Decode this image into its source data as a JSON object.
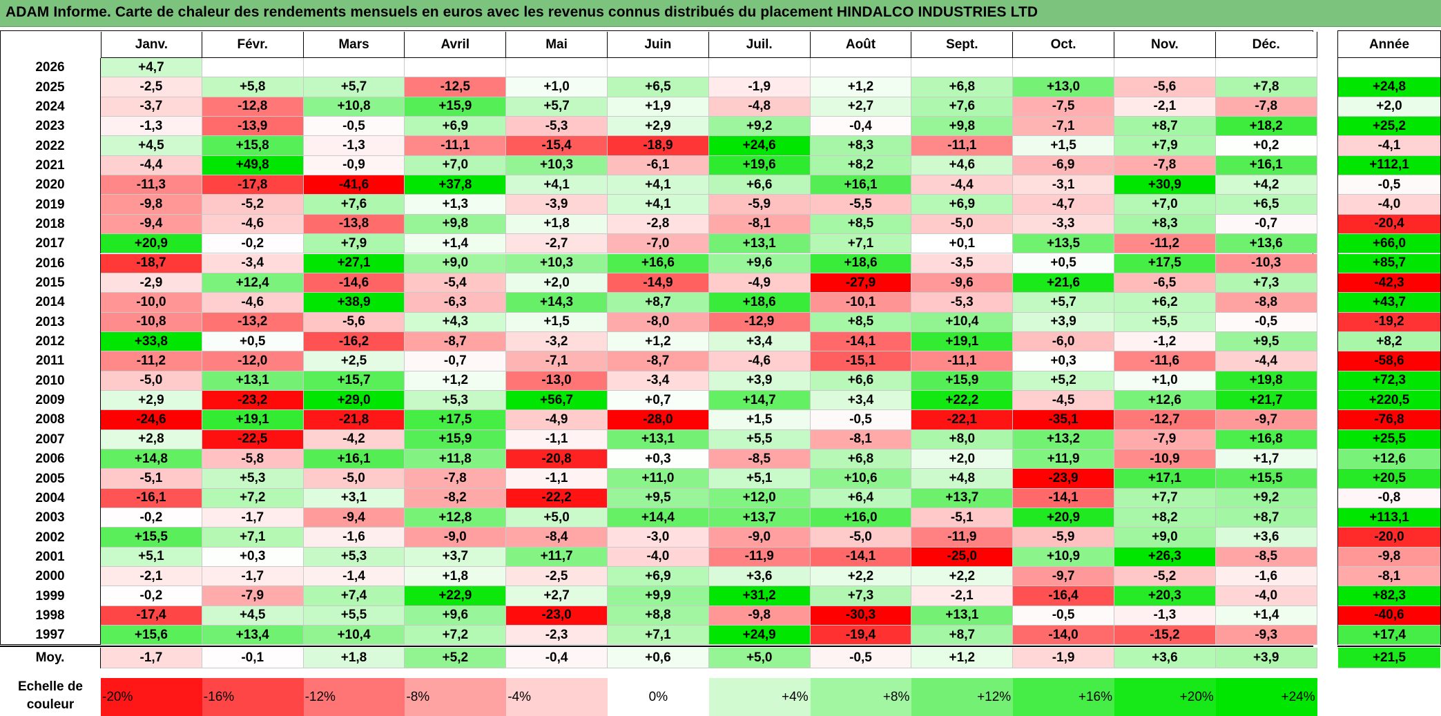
{
  "title": "ADAM Informe. Carte de chaleur des rendements mensuels en euros avec les revenus connus distribués du placement HINDALCO INDUSTRIES LTD",
  "colors": {
    "title_bar": "#7cc47d",
    "positive_max": "#00e600",
    "negative_max": "#ff0000",
    "neutral": "#ffffff"
  },
  "chart_data": {
    "type": "heatmap",
    "months": [
      "Janv.",
      "Févr.",
      "Mars",
      "Avril",
      "Mai",
      "Juin",
      "Juil.",
      "Août",
      "Sept.",
      "Oct.",
      "Nov.",
      "Déc."
    ],
    "year_header": "Année",
    "rows": [
      {
        "year": "2026",
        "values": [
          "+4,7",
          "",
          "",
          "",
          "",
          "",
          "",
          "",
          "",
          "",
          "",
          ""
        ],
        "annual": ""
      },
      {
        "year": "2025",
        "values": [
          "-2,5",
          "+5,8",
          "+5,7",
          "-12,5",
          "+1,0",
          "+6,5",
          "-1,9",
          "+1,2",
          "+6,8",
          "+13,0",
          "-5,6",
          "+7,8"
        ],
        "annual": "+24,8"
      },
      {
        "year": "2024",
        "values": [
          "-3,7",
          "-12,8",
          "+10,8",
          "+15,9",
          "+5,7",
          "+1,9",
          "-4,8",
          "+2,7",
          "+7,6",
          "-7,5",
          "-2,1",
          "-7,8"
        ],
        "annual": "+2,0"
      },
      {
        "year": "2023",
        "values": [
          "-1,3",
          "-13,9",
          "-0,5",
          "+6,9",
          "-5,3",
          "+2,9",
          "+9,2",
          "-0,4",
          "+9,8",
          "-7,1",
          "+8,7",
          "+18,2"
        ],
        "annual": "+25,2"
      },
      {
        "year": "2022",
        "values": [
          "+4,5",
          "+15,8",
          "-1,3",
          "-11,1",
          "-15,4",
          "-18,9",
          "+24,6",
          "+8,3",
          "-11,1",
          "+1,5",
          "+7,9",
          "+0,2"
        ],
        "annual": "-4,1"
      },
      {
        "year": "2021",
        "values": [
          "-4,4",
          "+49,8",
          "-0,9",
          "+7,0",
          "+10,3",
          "-6,1",
          "+19,6",
          "+8,2",
          "+4,6",
          "-6,9",
          "-7,8",
          "+16,1"
        ],
        "annual": "+112,1"
      },
      {
        "year": "2020",
        "values": [
          "-11,3",
          "-17,8",
          "-41,6",
          "+37,8",
          "+4,1",
          "+4,1",
          "+6,6",
          "+16,1",
          "-4,4",
          "-3,1",
          "+30,9",
          "+4,2"
        ],
        "annual": "-0,5"
      },
      {
        "year": "2019",
        "values": [
          "-9,8",
          "-5,2",
          "+7,6",
          "+1,3",
          "-3,9",
          "+4,1",
          "-5,9",
          "-5,5",
          "+6,9",
          "-4,7",
          "+7,0",
          "+6,5"
        ],
        "annual": "-4,0"
      },
      {
        "year": "2018",
        "values": [
          "-9,4",
          "-4,6",
          "-13,8",
          "+9,8",
          "+1,8",
          "-2,8",
          "-8,1",
          "+8,5",
          "-5,0",
          "-3,3",
          "+8,3",
          "-0,7"
        ],
        "annual": "-20,4"
      },
      {
        "year": "2017",
        "values": [
          "+20,9",
          "-0,2",
          "+7,9",
          "+1,4",
          "-2,7",
          "-7,0",
          "+13,1",
          "+7,1",
          "+0,1",
          "+13,5",
          "-11,2",
          "+13,6"
        ],
        "annual": "+66,0"
      },
      {
        "year": "2016",
        "values": [
          "-18,7",
          "-3,4",
          "+27,1",
          "+9,0",
          "+10,3",
          "+16,6",
          "+9,6",
          "+18,6",
          "-3,5",
          "+0,5",
          "+17,5",
          "-10,3"
        ],
        "annual": "+85,7"
      },
      {
        "year": "2015",
        "values": [
          "-2,9",
          "+12,4",
          "-14,6",
          "-5,4",
          "+2,0",
          "-14,9",
          "-4,9",
          "-27,9",
          "-9,6",
          "+21,6",
          "-6,5",
          "+7,3"
        ],
        "annual": "-42,3"
      },
      {
        "year": "2014",
        "values": [
          "-10,0",
          "-4,6",
          "+38,9",
          "-6,3",
          "+14,3",
          "+8,7",
          "+18,6",
          "-10,1",
          "-5,3",
          "+5,7",
          "+6,2",
          "-8,8"
        ],
        "annual": "+43,7"
      },
      {
        "year": "2013",
        "values": [
          "-10,8",
          "-13,2",
          "-5,6",
          "+4,3",
          "+1,5",
          "-8,0",
          "-12,9",
          "+8,5",
          "+10,4",
          "+3,9",
          "+5,5",
          "-0,5"
        ],
        "annual": "-19,2"
      },
      {
        "year": "2012",
        "values": [
          "+33,8",
          "+0,5",
          "-16,2",
          "-8,7",
          "-3,2",
          "+1,2",
          "+3,4",
          "-14,1",
          "+19,1",
          "-6,0",
          "-1,2",
          "+9,5"
        ],
        "annual": "+8,2"
      },
      {
        "year": "2011",
        "values": [
          "-11,2",
          "-12,0",
          "+2,5",
          "-0,7",
          "-7,1",
          "-8,7",
          "-4,6",
          "-15,1",
          "-11,1",
          "+0,3",
          "-11,6",
          "-4,4"
        ],
        "annual": "-58,6"
      },
      {
        "year": "2010",
        "values": [
          "-5,0",
          "+13,1",
          "+15,7",
          "+1,2",
          "-13,0",
          "-3,4",
          "+3,9",
          "+6,6",
          "+15,9",
          "+5,2",
          "+1,0",
          "+19,8"
        ],
        "annual": "+72,3"
      },
      {
        "year": "2009",
        "values": [
          "+2,9",
          "-23,2",
          "+29,0",
          "+5,3",
          "+56,7",
          "+0,7",
          "+14,7",
          "+3,4",
          "+22,2",
          "-4,5",
          "+12,6",
          "+21,7"
        ],
        "annual": "+220,5"
      },
      {
        "year": "2008",
        "values": [
          "-24,6",
          "+19,1",
          "-21,8",
          "+17,5",
          "-4,9",
          "-28,0",
          "+1,5",
          "-0,5",
          "-22,1",
          "-35,1",
          "-12,7",
          "-9,7"
        ],
        "annual": "-76,8"
      },
      {
        "year": "2007",
        "values": [
          "+2,8",
          "-22,5",
          "-4,2",
          "+15,9",
          "-1,1",
          "+13,1",
          "+5,5",
          "-8,1",
          "+8,0",
          "+13,2",
          "-7,9",
          "+16,8"
        ],
        "annual": "+25,5"
      },
      {
        "year": "2006",
        "values": [
          "+14,8",
          "-5,8",
          "+16,1",
          "+11,8",
          "-20,8",
          "+0,3",
          "-8,5",
          "+6,8",
          "+2,0",
          "+11,9",
          "-10,9",
          "+1,7"
        ],
        "annual": "+12,6"
      },
      {
        "year": "2005",
        "values": [
          "-5,1",
          "+5,3",
          "-5,0",
          "-7,8",
          "-1,1",
          "+11,0",
          "+5,1",
          "+10,6",
          "+4,8",
          "-23,9",
          "+17,1",
          "+15,5"
        ],
        "annual": "+20,5"
      },
      {
        "year": "2004",
        "values": [
          "-16,1",
          "+7,2",
          "+3,1",
          "-8,2",
          "-22,2",
          "+9,5",
          "+12,0",
          "+6,4",
          "+13,7",
          "-14,1",
          "+7,7",
          "+9,2"
        ],
        "annual": "-0,8"
      },
      {
        "year": "2003",
        "values": [
          "-0,2",
          "-1,7",
          "-9,4",
          "+12,8",
          "+5,0",
          "+14,4",
          "+13,7",
          "+16,0",
          "-5,1",
          "+20,9",
          "+8,2",
          "+8,7"
        ],
        "annual": "+113,1"
      },
      {
        "year": "2002",
        "values": [
          "+15,5",
          "+7,1",
          "-1,6",
          "-9,0",
          "-8,4",
          "-3,0",
          "-9,0",
          "-5,0",
          "-11,9",
          "-5,9",
          "+9,0",
          "+3,6"
        ],
        "annual": "-20,0"
      },
      {
        "year": "2001",
        "values": [
          "+5,1",
          "+0,3",
          "+5,3",
          "+3,7",
          "+11,7",
          "-4,0",
          "-11,9",
          "-14,1",
          "-25,0",
          "+10,9",
          "+26,3",
          "-8,5"
        ],
        "annual": "-9,8"
      },
      {
        "year": "2000",
        "values": [
          "-2,1",
          "-1,7",
          "-1,4",
          "+1,8",
          "-2,5",
          "+6,9",
          "+3,6",
          "+2,2",
          "+2,2",
          "-9,7",
          "-5,2",
          "-1,6"
        ],
        "annual": "-8,1"
      },
      {
        "year": "1999",
        "values": [
          "-0,2",
          "-7,9",
          "+7,4",
          "+22,9",
          "+2,7",
          "+9,9",
          "+31,2",
          "+7,3",
          "-2,1",
          "-16,4",
          "+20,3",
          "-4,0"
        ],
        "annual": "+82,3"
      },
      {
        "year": "1998",
        "values": [
          "-17,4",
          "+4,5",
          "+5,5",
          "+9,6",
          "-23,0",
          "+8,8",
          "-9,8",
          "-30,3",
          "+13,1",
          "-0,5",
          "-1,3",
          "+1,4"
        ],
        "annual": "-40,6"
      },
      {
        "year": "1997",
        "values": [
          "+15,6",
          "+13,4",
          "+10,4",
          "+7,2",
          "-2,3",
          "+7,1",
          "+24,9",
          "-19,4",
          "+8,7",
          "-14,0",
          "-15,2",
          "-9,3"
        ],
        "annual": "+17,4"
      }
    ],
    "average": {
      "label": "Moy.",
      "values": [
        "-1,7",
        "-0,1",
        "+1,8",
        "+5,2",
        "-0,4",
        "+0,6",
        "+5,0",
        "-0,5",
        "+1,2",
        "-1,9",
        "+3,6",
        "+3,9"
      ],
      "annual": "+21,5"
    },
    "scale": {
      "label_line1": "Echelle de",
      "label_line2": "couleur",
      "steps": [
        "-20%",
        "-16%",
        "-12%",
        "-8%",
        "-4%",
        "0%",
        "+4%",
        "+8%",
        "+12%",
        "+16%",
        "+20%",
        "+24%"
      ]
    }
  }
}
